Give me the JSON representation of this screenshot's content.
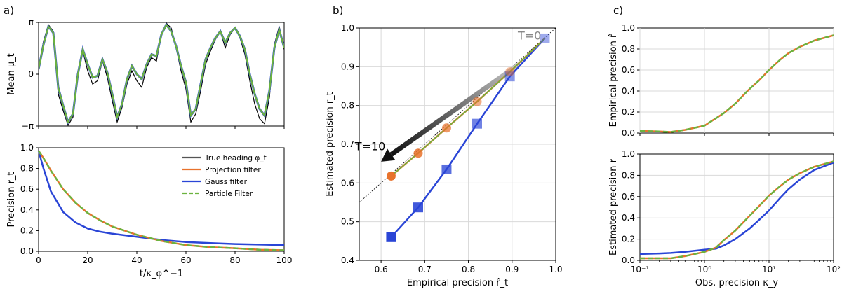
{
  "panel_labels": [
    "a)",
    "b)",
    "c)"
  ],
  "chart_data": [
    {
      "panel": "a) top",
      "type": "line",
      "ylabel": "Mean μ_t",
      "xlim": [
        0,
        100
      ],
      "ylim": [
        -3.1416,
        3.1416
      ],
      "yticks": [
        {
          "v": -3.1416,
          "label": "−π"
        },
        {
          "v": 0,
          "label": "0"
        },
        {
          "v": 3.1416,
          "label": "π"
        }
      ],
      "series": [
        {
          "name": "True heading φ_t",
          "color": "#000000",
          "x": [
            0,
            2,
            4,
            6,
            8,
            10,
            12,
            14,
            16,
            18,
            20,
            22,
            24,
            26,
            28,
            30,
            32,
            34,
            36,
            38,
            40,
            42,
            44,
            46,
            48,
            50,
            52,
            54,
            56,
            58,
            60,
            62,
            64,
            66,
            68,
            70,
            72,
            74,
            76,
            78,
            80,
            82,
            84,
            86,
            88,
            90,
            92,
            94,
            96,
            98,
            100
          ],
          "values": [
            0.4,
            2.0,
            3.0,
            2.6,
            -1.2,
            -2.2,
            -3.1,
            -2.6,
            0.1,
            1.4,
            0.2,
            -0.6,
            -0.4,
            0.8,
            -0.2,
            -1.6,
            -2.9,
            -2.0,
            -0.6,
            0.2,
            -0.4,
            -0.8,
            0.4,
            1.0,
            0.8,
            2.4,
            3.1,
            2.8,
            1.6,
            0.2,
            -0.9,
            -2.9,
            -2.4,
            -1.0,
            0.6,
            1.4,
            2.1,
            2.6,
            1.6,
            2.4,
            2.8,
            2.2,
            1.2,
            -0.4,
            -1.8,
            -2.7,
            -3.0,
            -1.4,
            1.8,
            2.9,
            1.5
          ]
        },
        {
          "name": "Gauss filter",
          "color": "#2a45d6",
          "x": [
            0,
            2,
            4,
            6,
            8,
            10,
            12,
            14,
            16,
            18,
            20,
            22,
            24,
            26,
            28,
            30,
            32,
            34,
            36,
            38,
            40,
            42,
            44,
            46,
            48,
            50,
            52,
            54,
            56,
            58,
            60,
            62,
            64,
            66,
            68,
            70,
            72,
            74,
            76,
            78,
            80,
            82,
            84,
            86,
            88,
            90,
            92,
            94,
            96,
            98,
            100
          ],
          "values": [
            0.3,
            1.8,
            2.9,
            2.5,
            -0.8,
            -1.9,
            -2.9,
            -2.4,
            0.0,
            1.5,
            0.6,
            -0.2,
            -0.1,
            0.9,
            0.1,
            -1.2,
            -2.6,
            -1.8,
            -0.3,
            0.5,
            0.0,
            -0.3,
            0.6,
            1.2,
            1.1,
            2.4,
            3.0,
            2.6,
            1.7,
            0.5,
            -0.5,
            -2.5,
            -2.1,
            -0.6,
            0.9,
            1.6,
            2.2,
            2.6,
            1.9,
            2.5,
            2.8,
            2.3,
            1.5,
            0.0,
            -1.2,
            -2.1,
            -2.5,
            -1.0,
            1.6,
            2.7,
            1.6
          ]
        },
        {
          "name": "Particle Filter",
          "color": "#6cb33f",
          "x": [
            0,
            2,
            4,
            6,
            8,
            10,
            12,
            14,
            16,
            18,
            20,
            22,
            24,
            26,
            28,
            30,
            32,
            34,
            36,
            38,
            40,
            42,
            44,
            46,
            48,
            50,
            52,
            54,
            56,
            58,
            60,
            62,
            64,
            66,
            68,
            70,
            72,
            74,
            76,
            78,
            80,
            82,
            84,
            86,
            88,
            90,
            92,
            94,
            96,
            98,
            100
          ],
          "values": [
            0.3,
            1.8,
            2.9,
            2.5,
            -0.8,
            -1.9,
            -2.9,
            -2.4,
            0.0,
            1.5,
            0.6,
            -0.2,
            -0.1,
            0.9,
            0.1,
            -1.2,
            -2.6,
            -1.8,
            -0.3,
            0.5,
            0.0,
            -0.3,
            0.6,
            1.2,
            1.1,
            2.4,
            3.0,
            2.6,
            1.7,
            0.5,
            -0.5,
            -2.5,
            -2.1,
            -0.6,
            0.9,
            1.6,
            2.2,
            2.6,
            1.9,
            2.5,
            2.8,
            2.3,
            1.5,
            0.0,
            -1.2,
            -2.1,
            -2.5,
            -1.0,
            1.6,
            2.7,
            1.6
          ]
        }
      ]
    },
    {
      "panel": "a) bottom",
      "type": "line",
      "xlabel": "t/κ_φ^−1",
      "ylabel": "Precision r_t",
      "xlim": [
        0,
        100
      ],
      "ylim": [
        0,
        1
      ],
      "xticks": [
        0,
        20,
        40,
        60,
        80,
        100
      ],
      "yticks": [
        0.0,
        0.2,
        0.4,
        0.6,
        0.8,
        1.0
      ],
      "legend": {
        "location": "upper right",
        "entries": [
          "True heading φ_t",
          "Projection filter",
          "Gauss filter",
          "Particle Filter"
        ]
      },
      "series": [
        {
          "name": "Projection filter",
          "color": "#e8722c",
          "dash": false,
          "x": [
            0,
            2,
            5,
            10,
            15,
            20,
            25,
            30,
            40,
            50,
            60,
            70,
            80,
            90,
            100
          ],
          "values": [
            0.97,
            0.9,
            0.78,
            0.6,
            0.47,
            0.37,
            0.3,
            0.24,
            0.16,
            0.1,
            0.06,
            0.04,
            0.03,
            0.015,
            0.01
          ]
        },
        {
          "name": "Gauss filter",
          "color": "#2a45d6",
          "dash": false,
          "x": [
            0,
            2,
            5,
            10,
            15,
            20,
            25,
            30,
            40,
            50,
            60,
            70,
            80,
            90,
            100
          ],
          "values": [
            0.97,
            0.8,
            0.58,
            0.38,
            0.28,
            0.22,
            0.19,
            0.17,
            0.14,
            0.11,
            0.09,
            0.08,
            0.07,
            0.065,
            0.06
          ]
        },
        {
          "name": "Particle Filter",
          "color": "#6cb33f",
          "dash": true,
          "x": [
            0,
            2,
            5,
            10,
            15,
            20,
            25,
            30,
            40,
            50,
            60,
            70,
            80,
            90,
            100
          ],
          "values": [
            0.97,
            0.9,
            0.78,
            0.6,
            0.47,
            0.37,
            0.3,
            0.24,
            0.16,
            0.1,
            0.06,
            0.04,
            0.03,
            0.015,
            0.01
          ]
        }
      ]
    },
    {
      "panel": "b)",
      "type": "line",
      "xlabel": "Empirical precision r̂_t",
      "ylabel": "Estimated precision r_t",
      "xlim": [
        0.55,
        1.0
      ],
      "ylim": [
        0.4,
        1.0
      ],
      "xticks": [
        0.6,
        0.7,
        0.8,
        0.9,
        1.0
      ],
      "yticks": [
        0.4,
        0.5,
        0.6,
        0.7,
        0.8,
        0.9,
        1.0
      ],
      "annotations": [
        {
          "text": "T=0",
          "x": 0.94,
          "y": 0.97,
          "color": "#888888"
        },
        {
          "text": "T=10",
          "x": 0.575,
          "y": 0.685,
          "color": "#000000"
        }
      ],
      "arrow": {
        "from": [
          0.915,
          0.905
        ],
        "to": [
          0.6,
          0.655
        ]
      },
      "series": [
        {
          "name": "identity",
          "color": "#000000",
          "style": "dotted",
          "x": [
            0.55,
            1.0
          ],
          "values": [
            0.55,
            1.0
          ]
        },
        {
          "name": "Projection filter",
          "color": "#e8722c",
          "marker": "circle",
          "x": [
            0.623,
            0.685,
            0.75,
            0.82,
            0.895,
            0.975
          ],
          "values": [
            0.618,
            0.677,
            0.742,
            0.81,
            0.887,
            0.973
          ]
        },
        {
          "name": "Particle Filter",
          "color": "#6cb33f",
          "x": [
            0.623,
            0.685,
            0.75,
            0.82,
            0.895,
            0.975
          ],
          "values": [
            0.618,
            0.677,
            0.742,
            0.81,
            0.887,
            0.973
          ]
        },
        {
          "name": "Gauss filter",
          "color": "#2a45d6",
          "marker": "square",
          "x": [
            0.623,
            0.685,
            0.75,
            0.82,
            0.895,
            0.975
          ],
          "values": [
            0.46,
            0.537,
            0.635,
            0.753,
            0.875,
            0.973
          ]
        }
      ]
    },
    {
      "panel": "c) top",
      "type": "line",
      "ylabel": "Empirical precision r̂",
      "xscale": "log",
      "xlim": [
        0.1,
        100
      ],
      "ylim": [
        0,
        1
      ],
      "yticks": [
        0.0,
        0.2,
        0.4,
        0.6,
        0.8,
        1.0
      ],
      "series": [
        {
          "name": "Projection filter",
          "color": "#e8722c",
          "x": [
            0.1,
            0.2,
            0.3,
            0.5,
            1,
            2,
            3,
            4,
            5,
            7,
            10,
            15,
            20,
            30,
            50,
            100
          ],
          "values": [
            0.02,
            0.015,
            0.01,
            0.03,
            0.07,
            0.19,
            0.28,
            0.36,
            0.42,
            0.5,
            0.6,
            0.7,
            0.76,
            0.82,
            0.88,
            0.93
          ]
        },
        {
          "name": "Particle Filter",
          "color": "#6cb33f",
          "dash": true,
          "x": [
            0.1,
            0.2,
            0.3,
            0.5,
            1,
            2,
            3,
            4,
            5,
            7,
            10,
            15,
            20,
            30,
            50,
            100
          ],
          "values": [
            0.02,
            0.015,
            0.01,
            0.03,
            0.07,
            0.19,
            0.28,
            0.36,
            0.42,
            0.5,
            0.6,
            0.7,
            0.76,
            0.82,
            0.88,
            0.93
          ]
        }
      ]
    },
    {
      "panel": "c) bottom",
      "type": "line",
      "xlabel": "Obs. precision κ_y",
      "ylabel": "Estimated precision r",
      "xscale": "log",
      "xlim": [
        0.1,
        100
      ],
      "ylim": [
        0,
        1
      ],
      "xticks": [
        {
          "v": 0.1,
          "label": "10⁻¹"
        },
        {
          "v": 1,
          "label": "10⁰"
        },
        {
          "v": 10,
          "label": "10¹"
        },
        {
          "v": 100,
          "label": "10²"
        }
      ],
      "yticks": [
        0.0,
        0.2,
        0.4,
        0.6,
        0.8,
        1.0
      ],
      "series": [
        {
          "name": "Gauss filter",
          "color": "#2a45d6",
          "x": [
            0.1,
            0.2,
            0.3,
            0.5,
            1,
            1.5,
            2,
            3,
            5,
            7,
            10,
            15,
            20,
            30,
            50,
            100
          ],
          "values": [
            0.06,
            0.065,
            0.07,
            0.08,
            0.1,
            0.11,
            0.14,
            0.2,
            0.3,
            0.38,
            0.47,
            0.59,
            0.67,
            0.76,
            0.85,
            0.92
          ]
        },
        {
          "name": "Projection filter",
          "color": "#e8722c",
          "x": [
            0.1,
            0.2,
            0.3,
            0.5,
            1,
            1.5,
            2,
            3,
            5,
            7,
            10,
            15,
            20,
            30,
            50,
            100
          ],
          "values": [
            0.02,
            0.02,
            0.02,
            0.04,
            0.08,
            0.12,
            0.19,
            0.28,
            0.42,
            0.51,
            0.61,
            0.7,
            0.76,
            0.82,
            0.88,
            0.93
          ]
        },
        {
          "name": "Particle Filter",
          "color": "#6cb33f",
          "dash": true,
          "x": [
            0.1,
            0.2,
            0.3,
            0.5,
            1,
            1.5,
            2,
            3,
            5,
            7,
            10,
            15,
            20,
            30,
            50,
            100
          ],
          "values": [
            0.02,
            0.02,
            0.02,
            0.04,
            0.08,
            0.12,
            0.19,
            0.28,
            0.42,
            0.51,
            0.61,
            0.7,
            0.76,
            0.82,
            0.88,
            0.93
          ]
        }
      ]
    }
  ]
}
